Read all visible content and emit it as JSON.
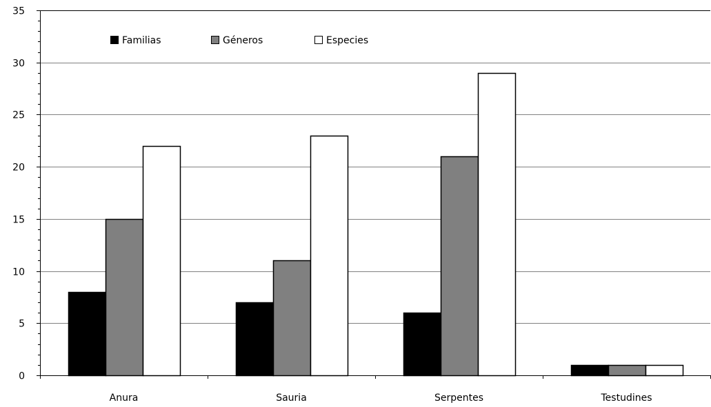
{
  "chart_data": {
    "type": "bar",
    "title": "",
    "xlabel": "",
    "ylabel": "",
    "categories": [
      "Anura",
      "Sauria",
      "Serpentes",
      "Testudines"
    ],
    "series": [
      {
        "name": "Familias",
        "values": [
          8,
          7,
          6,
          1
        ],
        "color": "#000000"
      },
      {
        "name": "Géneros",
        "values": [
          15,
          11,
          21,
          1
        ],
        "color": "#808080"
      },
      {
        "name": "Especies",
        "values": [
          22,
          23,
          29,
          1
        ],
        "color": "#ffffff"
      }
    ],
    "ylim": [
      0,
      35
    ],
    "yticks": [
      0,
      5,
      10,
      15,
      20,
      25,
      30,
      35
    ],
    "grid": true,
    "legend_position": "top-left",
    "border_color": "#000000",
    "grid_color": "#808080"
  }
}
